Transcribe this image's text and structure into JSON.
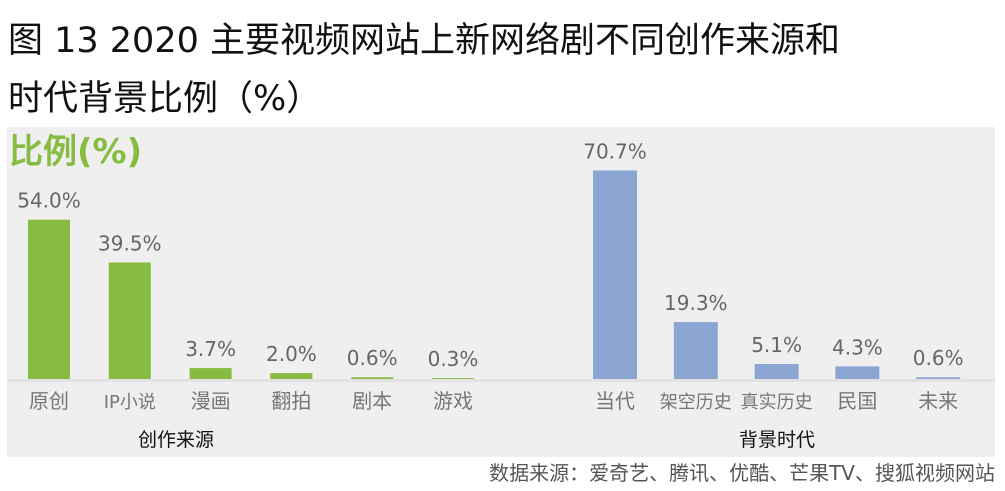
{
  "title_line1": "图 13 2020 主要视频网站上新网络剧不同创作来源和",
  "title_line2": "时代背景比例（%）",
  "source": "数据来源：爱奇艺、腾讯、优酷、芒果TV、搜狐视频网站",
  "chart_data": [
    {
      "type": "bar",
      "ylabel": "比例(%)",
      "xlabel": "创作来源",
      "categories": [
        "原创",
        "IP小说",
        "漫画",
        "翻拍",
        "剧本",
        "游戏"
      ],
      "values": [
        54.0,
        39.5,
        3.7,
        2.0,
        0.6,
        0.3
      ],
      "data_labels": [
        "54.0%",
        "39.5%",
        "3.7%",
        "2.0%",
        "0.6%",
        "0.3%"
      ],
      "color": "#86bc42",
      "grid": false
    },
    {
      "type": "bar",
      "xlabel": "背景时代",
      "categories": [
        "当代",
        "架空历史",
        "真实历史",
        "民国",
        "未来"
      ],
      "values": [
        70.7,
        19.3,
        5.1,
        4.3,
        0.6
      ],
      "data_labels": [
        "70.7%",
        "19.3%",
        "5.1%",
        "4.3%",
        "0.6%"
      ],
      "color": "#8ca6d4",
      "grid": false
    }
  ]
}
